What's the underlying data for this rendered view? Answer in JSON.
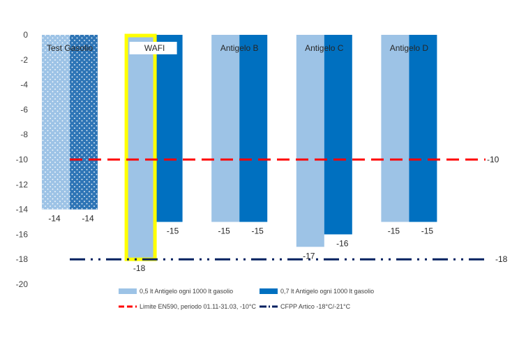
{
  "chart_data": {
    "type": "bar",
    "title": "",
    "xlabel": "",
    "ylabel": "",
    "ylim": [
      -20,
      0
    ],
    "yticks": [
      0,
      -2,
      -4,
      -6,
      -8,
      -10,
      -12,
      -14,
      -16,
      -18,
      -20
    ],
    "grid": false,
    "categories": [
      "Test Gasolio",
      "WAFI",
      "Antigelo B",
      "Antigelo C",
      "Antigelo D"
    ],
    "highlighted_category": "WAFI",
    "series": [
      {
        "name": "0,5 lt Antigelo ogni 1000 lt gasolio",
        "values": [
          -14,
          -18,
          -15,
          -17,
          -15
        ],
        "color": "#9DC3E6"
      },
      {
        "name": "0,7 lt Antigelo ogni 1000 lt gasolio",
        "values": [
          -14,
          -15,
          -15,
          -16,
          -15
        ],
        "color": "#0070C0"
      }
    ],
    "reference_lines": [
      {
        "name": "Limite EN590, periodo 01.11-31.03, -10°C",
        "value": -10,
        "label": "-10",
        "color": "#FF0000",
        "style": "dashed"
      },
      {
        "name": "CFPP Artico -18°C/-21°C",
        "value": -18,
        "label": "-18",
        "color": "#002060",
        "style": "dash-dot-dot"
      }
    ],
    "legend_position": "bottom",
    "highlight_color": "#FFFF00"
  }
}
